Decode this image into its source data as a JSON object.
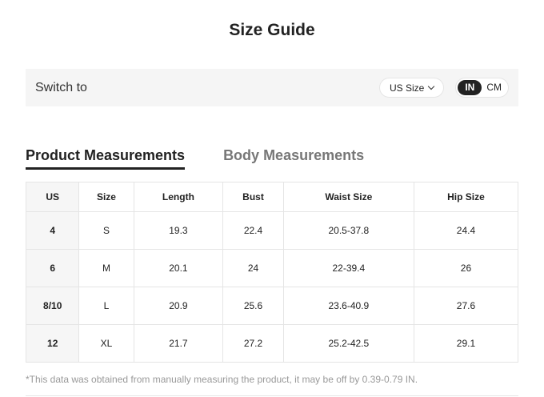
{
  "title": "Size Guide",
  "switch": {
    "label": "Switch to",
    "size_select": "US Size",
    "units": [
      "IN",
      "CM"
    ],
    "active_unit": "IN"
  },
  "tabs": [
    {
      "label": "Product Measurements",
      "active": true
    },
    {
      "label": "Body Measurements",
      "active": false
    }
  ],
  "table": {
    "headers": [
      "US",
      "Size",
      "Length",
      "Bust",
      "Waist Size",
      "Hip Size"
    ],
    "rows": [
      [
        "4",
        "S",
        "19.3",
        "22.4",
        "20.5-37.8",
        "24.4"
      ],
      [
        "6",
        "M",
        "20.1",
        "24",
        "22-39.4",
        "26"
      ],
      [
        "8/10",
        "L",
        "20.9",
        "25.6",
        "23.6-40.9",
        "27.6"
      ],
      [
        "12",
        "XL",
        "21.7",
        "27.2",
        "25.2-42.5",
        "29.1"
      ]
    ]
  },
  "note": "*This data was obtained from manually measuring the product, it may be off by 0.39-0.79 IN."
}
